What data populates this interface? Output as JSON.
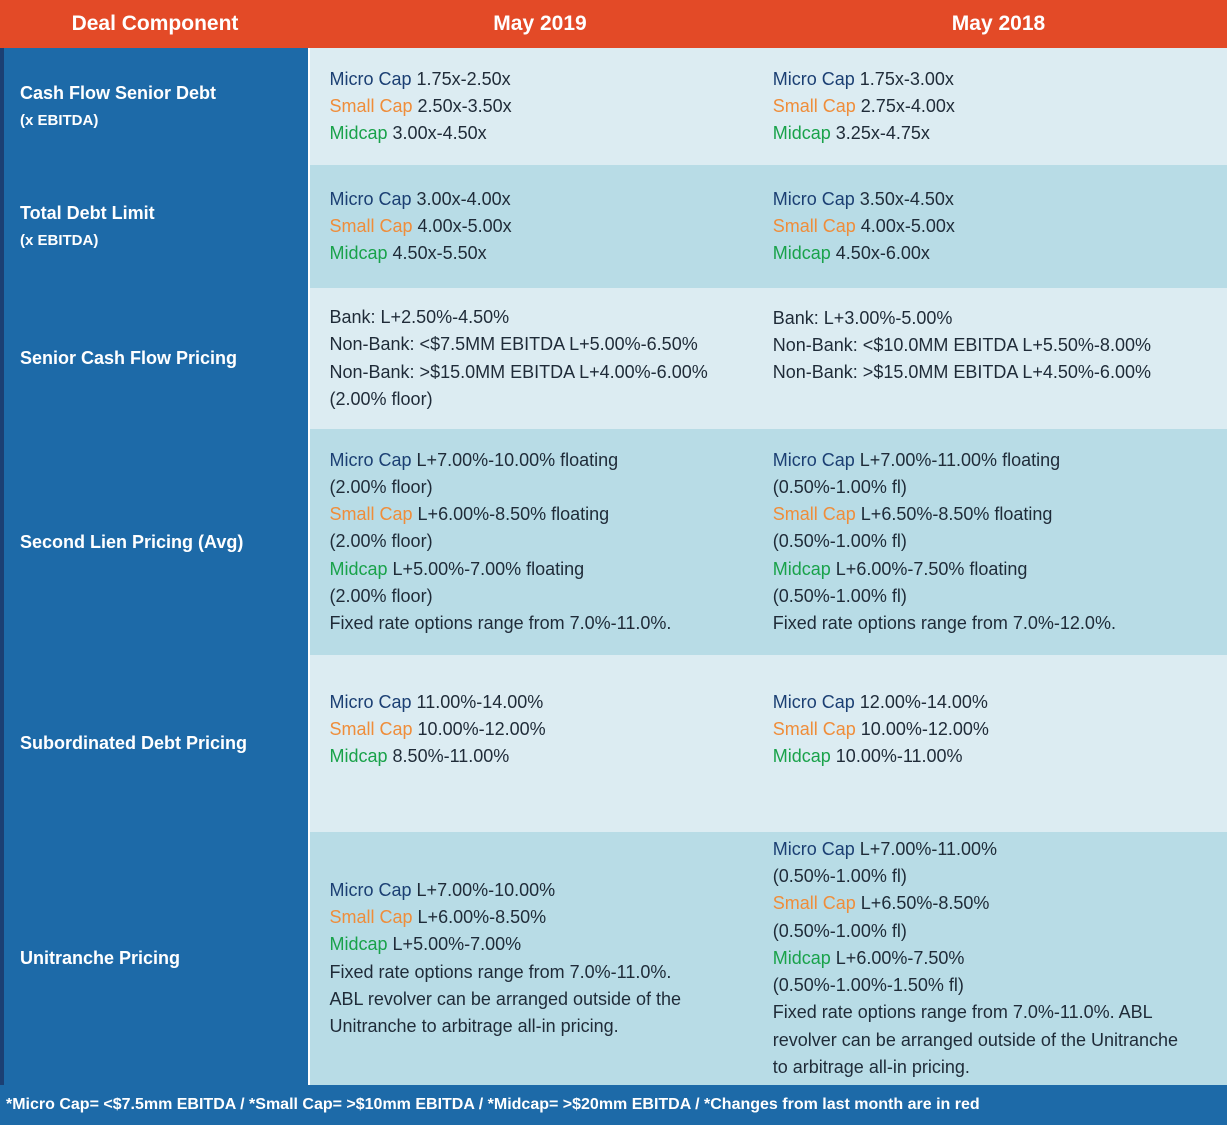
{
  "header": {
    "col1": "Deal Component",
    "col2": "May 2019",
    "col3": "May 2018"
  },
  "rows": [
    {
      "title": "Cash Flow Senior Debt",
      "subtitle": "(x EBITDA)",
      "may2019": [
        {
          "tag": "Micro Cap",
          "value": " 1.75x-2.50x"
        },
        {
          "tag": "Small Cap",
          "value": " 2.50x-3.50x"
        },
        {
          "tag": "Midcap",
          "value": " 3.00x-4.50x"
        }
      ],
      "may2018": [
        {
          "tag": "Micro Cap",
          "value": " 1.75x-3.00x"
        },
        {
          "tag": "Small Cap",
          "value": " 2.75x-4.00x"
        },
        {
          "tag": "Midcap",
          "value": " 3.25x-4.75x"
        }
      ]
    },
    {
      "title": "Total Debt Limit",
      "subtitle": "(x EBITDA)",
      "may2019": [
        {
          "tag": "Micro Cap",
          "value": " 3.00x-4.00x"
        },
        {
          "tag": "Small Cap",
          "value": " 4.00x-5.00x"
        },
        {
          "tag": "Midcap",
          "value": " 4.50x-5.50x"
        }
      ],
      "may2018": [
        {
          "tag": "Micro Cap",
          "value": " 3.50x-4.50x"
        },
        {
          "tag": "Small Cap",
          "value": " 4.00x-5.00x"
        },
        {
          "tag": "Midcap",
          "value": " 4.50x-6.00x"
        }
      ]
    },
    {
      "title": "Senior Cash Flow Pricing",
      "may2019": [
        "Bank: L+2.50%-4.50%",
        "Non-Bank: <$7.5MM EBITDA L+5.00%-6.50%",
        "Non-Bank: >$15.0MM EBITDA L+4.00%-6.00%",
        "(2.00% floor)"
      ],
      "may2018": [
        "Bank: L+3.00%-5.00%",
        "Non-Bank: <$10.0MM EBITDA L+5.50%-8.00%",
        "Non-Bank: >$15.0MM EBITDA L+4.50%-6.00%"
      ]
    },
    {
      "title": "Second Lien Pricing (Avg)",
      "may2019": [
        {
          "tag": "Micro Cap",
          "value": " L+7.00%-10.00% floating"
        },
        {
          "value": "(2.00% floor)"
        },
        {
          "tag": "Small Cap",
          "value": " L+6.00%-8.50% floating"
        },
        {
          "value": "(2.00% floor)"
        },
        {
          "tag": "Midcap",
          "value": " L+5.00%-7.00% floating"
        },
        {
          "value": "(2.00% floor)"
        },
        {
          "value": "Fixed rate options range from 7.0%-11.0%."
        }
      ],
      "may2018": [
        {
          "tag": "Micro Cap",
          "value": " L+7.00%-11.00% floating"
        },
        {
          "value": "(0.50%-1.00% fl)"
        },
        {
          "tag": "Small Cap",
          "value": " L+6.50%-8.50% floating"
        },
        {
          "value": "(0.50%-1.00% fl)"
        },
        {
          "tag": "Midcap",
          "value": " L+6.00%-7.50% floating"
        },
        {
          "value": "(0.50%-1.00% fl)"
        },
        {
          "value": "Fixed rate options range from 7.0%-12.0%."
        }
      ]
    },
    {
      "title": "Subordinated Debt Pricing",
      "may2019": [
        {
          "tag": "Micro Cap",
          "value": " 11.00%-14.00%"
        },
        {
          "tag": "Small Cap",
          "value": " 10.00%-12.00%"
        },
        {
          "tag": "Midcap",
          "value": " 8.50%-11.00%"
        }
      ],
      "may2018": [
        {
          "tag": "Micro Cap",
          "value": " 12.00%-14.00%"
        },
        {
          "tag": "Small Cap",
          "value": " 10.00%-12.00%"
        },
        {
          "tag": "Midcap",
          "value": " 10.00%-11.00%"
        }
      ]
    },
    {
      "title": "Unitranche Pricing",
      "may2019": [
        {
          "tag": "Micro Cap",
          "value": " L+7.00%-10.00%"
        },
        {
          "tag": "Small Cap",
          "value": " L+6.00%-8.50%"
        },
        {
          "tag": "Midcap",
          "value": " L+5.00%-7.00%"
        },
        {
          "value": "Fixed rate options range from 7.0%-11.0%."
        },
        {
          "value": "ABL revolver can be arranged outside of the"
        },
        {
          "value": "Unitranche to arbitrage all-in pricing."
        }
      ],
      "may2018": [
        {
          "tag": "Micro Cap",
          "value": " L+7.00%-11.00%"
        },
        {
          "value": "(0.50%-1.00% fl)"
        },
        {
          "tag": "Small Cap",
          "value": " L+6.50%-8.50%"
        },
        {
          "value": "(0.50%-1.00% fl)"
        },
        {
          "tag": "Midcap",
          "value": " L+6.00%-7.50%"
        },
        {
          "value": "(0.50%-1.00%-1.50% fl)"
        },
        {
          "value": "Fixed rate options range from 7.0%-11.0%. ABL"
        },
        {
          "value": "revolver can be arranged outside of the Unitranche"
        },
        {
          "value": "to arbitrage all-in pricing."
        }
      ]
    }
  ],
  "footer": "*Micro Cap= <$7.5mm EBITDA / *Small Cap= >$10mm EBITDA / *Midcap= >$20mm EBITDA / *Changes from last month are in red"
}
